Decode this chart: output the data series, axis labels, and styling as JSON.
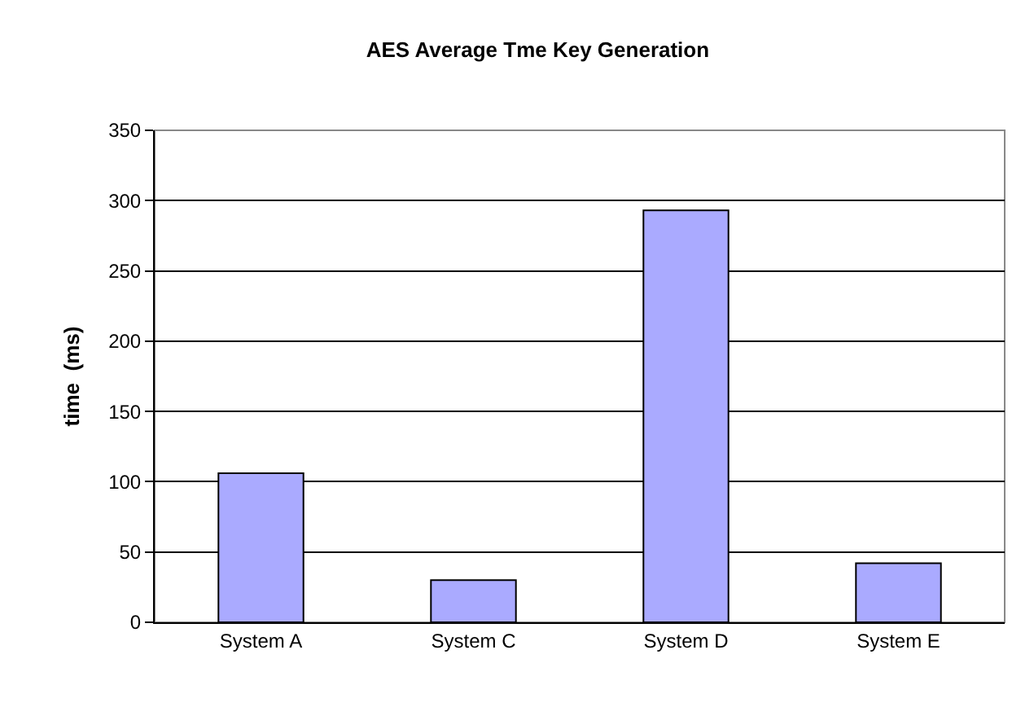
{
  "chart_data": {
    "type": "bar",
    "title": "AES Average Tme Key Generation",
    "ylabel": "time  (ms)",
    "categories": [
      "System A",
      "System C",
      "System D",
      "System E"
    ],
    "values": [
      106,
      30,
      293,
      42
    ],
    "color": "#aaaaff",
    "ylim": [
      0,
      350
    ],
    "yticks": [
      0,
      50,
      100,
      150,
      200,
      250,
      300,
      350
    ],
    "grid": "y"
  }
}
